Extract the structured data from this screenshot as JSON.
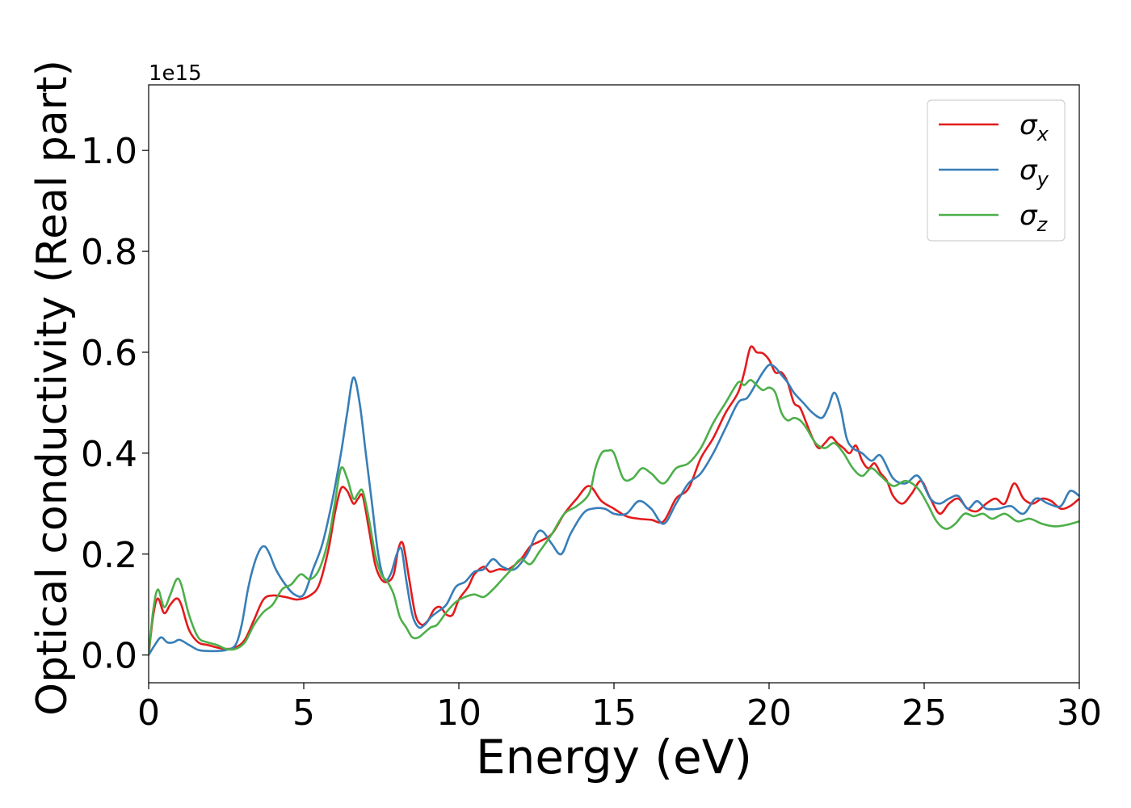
{
  "chart_data": {
    "type": "line",
    "title": "",
    "xlabel": "Energy (eV)",
    "ylabel": "Optical conductivity (Real part)",
    "y_offset_label": "1e15",
    "xlim": [
      0,
      30
    ],
    "ylim": [
      -0.055,
      1.13
    ],
    "xticks": [
      0,
      5,
      10,
      15,
      20,
      25,
      30
    ],
    "xtick_labels": [
      "0",
      "5",
      "10",
      "15",
      "20",
      "25",
      "30"
    ],
    "yticks": [
      0.0,
      0.2,
      0.4,
      0.6,
      0.8,
      1.0
    ],
    "ytick_labels": [
      "0.0",
      "0.2",
      "0.4",
      "0.6",
      "0.8",
      "1.0"
    ],
    "grid": false,
    "legend": "top-right",
    "series": [
      {
        "name": "σx",
        "symbol": "σ",
        "subscript": "x",
        "color": "#e41a1c",
        "x": [
          0,
          0.15,
          0.3,
          0.5,
          0.7,
          0.9,
          1.05,
          1.3,
          1.6,
          1.9,
          2.2,
          2.5,
          2.8,
          3.1,
          3.4,
          3.7,
          4.0,
          4.4,
          4.8,
          5.2,
          5.5,
          5.8,
          6.0,
          6.2,
          6.4,
          6.6,
          6.75,
          6.9,
          7.1,
          7.3,
          7.5,
          7.7,
          7.9,
          8.05,
          8.2,
          8.4,
          8.6,
          8.8,
          9.0,
          9.2,
          9.4,
          9.6,
          9.8,
          10.0,
          10.3,
          10.5,
          10.8,
          11.0,
          11.3,
          11.6,
          12.0,
          12.3,
          12.6,
          13.0,
          13.4,
          13.8,
          14.2,
          14.6,
          15.0,
          15.4,
          15.8,
          16.2,
          16.6,
          17.0,
          17.4,
          17.8,
          18.2,
          18.6,
          19.0,
          19.2,
          19.4,
          19.6,
          19.8,
          20.0,
          20.2,
          20.4,
          20.6,
          20.8,
          21.0,
          21.2,
          21.4,
          21.6,
          21.8,
          22.0,
          22.2,
          22.4,
          22.6,
          22.8,
          23.0,
          23.2,
          23.4,
          23.6,
          23.8,
          24.0,
          24.3,
          24.6,
          24.9,
          25.2,
          25.5,
          25.8,
          26.1,
          26.4,
          26.7,
          27.0,
          27.3,
          27.6,
          27.9,
          28.2,
          28.5,
          28.8,
          29.1,
          29.4,
          29.7,
          30.0
        ],
        "y": [
          0.0,
          0.08,
          0.112,
          0.083,
          0.1,
          0.112,
          0.1,
          0.05,
          0.025,
          0.02,
          0.015,
          0.012,
          0.015,
          0.03,
          0.07,
          0.11,
          0.118,
          0.115,
          0.11,
          0.118,
          0.14,
          0.21,
          0.28,
          0.33,
          0.325,
          0.3,
          0.31,
          0.315,
          0.25,
          0.18,
          0.15,
          0.145,
          0.16,
          0.21,
          0.22,
          0.15,
          0.08,
          0.06,
          0.068,
          0.09,
          0.095,
          0.08,
          0.08,
          0.11,
          0.135,
          0.16,
          0.175,
          0.165,
          0.17,
          0.17,
          0.19,
          0.215,
          0.225,
          0.24,
          0.28,
          0.31,
          0.335,
          0.305,
          0.29,
          0.275,
          0.27,
          0.268,
          0.265,
          0.31,
          0.33,
          0.39,
          0.43,
          0.48,
          0.52,
          0.56,
          0.61,
          0.6,
          0.598,
          0.585,
          0.56,
          0.56,
          0.54,
          0.5,
          0.49,
          0.46,
          0.43,
          0.41,
          0.42,
          0.432,
          0.42,
          0.41,
          0.4,
          0.415,
          0.385,
          0.37,
          0.38,
          0.36,
          0.345,
          0.315,
          0.3,
          0.32,
          0.345,
          0.31,
          0.28,
          0.3,
          0.31,
          0.29,
          0.285,
          0.3,
          0.31,
          0.3,
          0.34,
          0.31,
          0.3,
          0.31,
          0.305,
          0.29,
          0.295,
          0.31
        ]
      },
      {
        "name": "σy",
        "symbol": "σ",
        "subscript": "y",
        "color": "#377eb8",
        "x": [
          0,
          0.2,
          0.4,
          0.6,
          0.8,
          1.0,
          1.3,
          1.6,
          1.9,
          2.2,
          2.5,
          2.8,
          3.0,
          3.2,
          3.4,
          3.6,
          3.75,
          3.9,
          4.1,
          4.4,
          4.7,
          5.0,
          5.3,
          5.6,
          5.9,
          6.2,
          6.4,
          6.6,
          6.8,
          7.0,
          7.2,
          7.4,
          7.6,
          7.8,
          8.0,
          8.15,
          8.3,
          8.5,
          8.7,
          8.9,
          9.1,
          9.3,
          9.6,
          9.9,
          10.2,
          10.5,
          10.8,
          11.1,
          11.4,
          11.8,
          12.2,
          12.5,
          12.7,
          13.0,
          13.3,
          13.6,
          14.0,
          14.3,
          14.7,
          15.0,
          15.4,
          15.8,
          16.2,
          16.6,
          17.0,
          17.4,
          17.8,
          18.2,
          18.6,
          19.0,
          19.3,
          19.6,
          19.8,
          20.0,
          20.2,
          20.4,
          20.6,
          20.8,
          21.1,
          21.4,
          21.7,
          21.9,
          22.1,
          22.3,
          22.5,
          22.7,
          23.0,
          23.3,
          23.6,
          24.0,
          24.4,
          24.8,
          25.2,
          25.5,
          25.8,
          26.1,
          26.4,
          26.7,
          27.0,
          27.4,
          27.8,
          28.2,
          28.6,
          29.0,
          29.4,
          29.7,
          30.0
        ],
        "y": [
          0.0,
          0.02,
          0.035,
          0.025,
          0.025,
          0.03,
          0.02,
          0.01,
          0.008,
          0.008,
          0.01,
          0.02,
          0.06,
          0.13,
          0.18,
          0.21,
          0.215,
          0.2,
          0.17,
          0.14,
          0.12,
          0.12,
          0.17,
          0.22,
          0.3,
          0.4,
          0.48,
          0.55,
          0.5,
          0.4,
          0.3,
          0.2,
          0.15,
          0.16,
          0.2,
          0.21,
          0.15,
          0.08,
          0.055,
          0.06,
          0.075,
          0.085,
          0.1,
          0.135,
          0.145,
          0.165,
          0.17,
          0.19,
          0.175,
          0.17,
          0.2,
          0.24,
          0.245,
          0.22,
          0.2,
          0.24,
          0.28,
          0.29,
          0.29,
          0.28,
          0.28,
          0.305,
          0.29,
          0.26,
          0.3,
          0.34,
          0.36,
          0.4,
          0.45,
          0.5,
          0.51,
          0.54,
          0.56,
          0.575,
          0.57,
          0.555,
          0.54,
          0.52,
          0.5,
          0.48,
          0.47,
          0.49,
          0.52,
          0.49,
          0.43,
          0.41,
          0.4,
          0.385,
          0.395,
          0.35,
          0.34,
          0.355,
          0.31,
          0.3,
          0.31,
          0.315,
          0.29,
          0.305,
          0.29,
          0.29,
          0.295,
          0.28,
          0.31,
          0.3,
          0.295,
          0.325,
          0.315
        ]
      },
      {
        "name": "σz",
        "symbol": "σ",
        "subscript": "z",
        "color": "#4daf4a",
        "x": [
          0,
          0.15,
          0.3,
          0.5,
          0.7,
          0.9,
          1.05,
          1.3,
          1.6,
          1.9,
          2.2,
          2.5,
          2.8,
          3.1,
          3.4,
          3.7,
          4.0,
          4.3,
          4.6,
          4.9,
          5.2,
          5.5,
          5.8,
          6.0,
          6.2,
          6.4,
          6.6,
          6.75,
          6.9,
          7.1,
          7.3,
          7.5,
          7.7,
          7.9,
          8.1,
          8.3,
          8.5,
          8.7,
          8.9,
          9.1,
          9.3,
          9.6,
          9.9,
          10.2,
          10.5,
          10.8,
          11.1,
          11.4,
          11.7,
          12.0,
          12.3,
          12.6,
          13.0,
          13.4,
          13.8,
          14.2,
          14.4,
          14.6,
          14.8,
          15.0,
          15.3,
          15.6,
          15.9,
          16.2,
          16.6,
          17.0,
          17.4,
          17.8,
          18.2,
          18.6,
          19.0,
          19.2,
          19.4,
          19.6,
          19.8,
          20.0,
          20.2,
          20.4,
          20.6,
          20.8,
          21.0,
          21.2,
          21.5,
          21.8,
          22.1,
          22.4,
          22.7,
          23.0,
          23.3,
          23.6,
          24.0,
          24.4,
          24.8,
          25.1,
          25.4,
          25.7,
          26.0,
          26.3,
          26.6,
          26.9,
          27.2,
          27.6,
          28.0,
          28.4,
          28.8,
          29.2,
          29.6,
          30.0
        ],
        "y": [
          0.0,
          0.09,
          0.13,
          0.095,
          0.12,
          0.15,
          0.14,
          0.08,
          0.035,
          0.025,
          0.02,
          0.012,
          0.012,
          0.025,
          0.06,
          0.085,
          0.1,
          0.13,
          0.14,
          0.16,
          0.15,
          0.17,
          0.23,
          0.3,
          0.37,
          0.35,
          0.31,
          0.32,
          0.325,
          0.27,
          0.2,
          0.16,
          0.145,
          0.12,
          0.075,
          0.055,
          0.035,
          0.035,
          0.045,
          0.055,
          0.06,
          0.085,
          0.105,
          0.115,
          0.12,
          0.115,
          0.13,
          0.15,
          0.17,
          0.19,
          0.18,
          0.205,
          0.24,
          0.28,
          0.295,
          0.32,
          0.37,
          0.4,
          0.405,
          0.4,
          0.35,
          0.35,
          0.37,
          0.36,
          0.34,
          0.37,
          0.38,
          0.41,
          0.46,
          0.5,
          0.54,
          0.535,
          0.545,
          0.535,
          0.525,
          0.53,
          0.52,
          0.48,
          0.465,
          0.47,
          0.465,
          0.45,
          0.42,
          0.41,
          0.42,
          0.4,
          0.37,
          0.355,
          0.37,
          0.355,
          0.335,
          0.345,
          0.33,
          0.3,
          0.265,
          0.25,
          0.26,
          0.28,
          0.275,
          0.28,
          0.27,
          0.28,
          0.265,
          0.27,
          0.26,
          0.255,
          0.258,
          0.265
        ]
      }
    ]
  }
}
